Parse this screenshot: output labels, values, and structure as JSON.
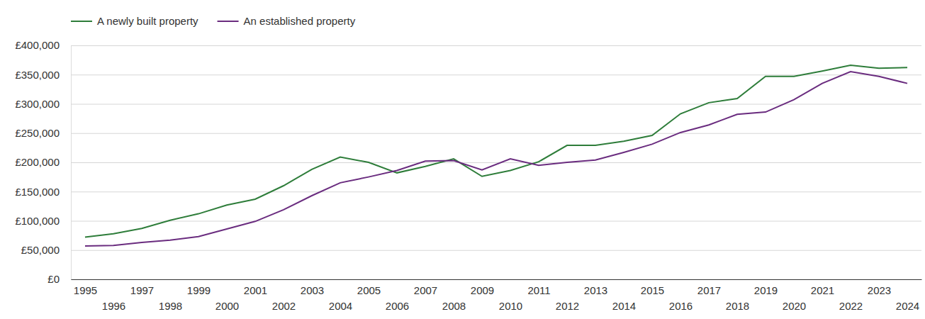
{
  "chart_data": {
    "type": "line",
    "x": [
      1995,
      1996,
      1997,
      1998,
      1999,
      2000,
      2001,
      2002,
      2003,
      2004,
      2005,
      2006,
      2007,
      2008,
      2009,
      2010,
      2011,
      2012,
      2013,
      2014,
      2015,
      2016,
      2017,
      2018,
      2019,
      2020,
      2021,
      2022,
      2023,
      2024
    ],
    "series": [
      {
        "name": "A newly built property",
        "color": "#2e7d3a",
        "values": [
          72000,
          78000,
          87000,
          101000,
          112000,
          127000,
          137000,
          160000,
          188000,
          209000,
          200000,
          182000,
          193000,
          206000,
          176000,
          186000,
          201000,
          229000,
          229000,
          236000,
          246000,
          283000,
          302000,
          309000,
          347000,
          347000,
          356000,
          366000,
          361000,
          362000
        ]
      },
      {
        "name": "An established property",
        "color": "#6a2c7f",
        "values": [
          57000,
          58000,
          63000,
          67000,
          73000,
          86000,
          99000,
          119000,
          143000,
          165000,
          175000,
          186000,
          202000,
          203000,
          187000,
          206000,
          195000,
          200000,
          204000,
          217000,
          231000,
          251000,
          264000,
          282000,
          286000,
          307000,
          335000,
          355000,
          347000,
          335000
        ]
      }
    ],
    "xlim": [
      1994.5,
      2024.5
    ],
    "xticks": [
      1995,
      1996,
      1997,
      1998,
      1999,
      2000,
      2001,
      2002,
      2003,
      2004,
      2005,
      2006,
      2007,
      2008,
      2009,
      2010,
      2011,
      2012,
      2013,
      2014,
      2015,
      2016,
      2017,
      2018,
      2019,
      2020,
      2021,
      2022,
      2023,
      2024
    ],
    "ylim": [
      0,
      400000
    ],
    "yticks": [
      {
        "value": 0,
        "label": "£0"
      },
      {
        "value": 50000,
        "label": "£50,000"
      },
      {
        "value": 100000,
        "label": "£100,000"
      },
      {
        "value": 150000,
        "label": "£150,000"
      },
      {
        "value": 200000,
        "label": "£200,000"
      },
      {
        "value": 250000,
        "label": "£250,000"
      },
      {
        "value": 300000,
        "label": "£300,000"
      },
      {
        "value": 350000,
        "label": "£350,000"
      },
      {
        "value": 400000,
        "label": "£400,000"
      }
    ],
    "grid": true,
    "legend": "top-left"
  }
}
